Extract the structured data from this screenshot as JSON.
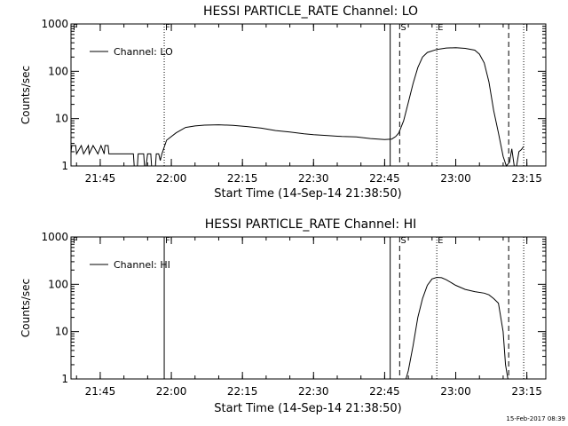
{
  "figure": {
    "footer_stamp": "15-Feb-2017 08:39",
    "x_tick_labels": [
      "21:45",
      "22:00",
      "22:15",
      "22:30",
      "22:45",
      "23:00",
      "23:15"
    ],
    "y_tick_labels": [
      "1",
      "10",
      "100",
      "1000"
    ],
    "marker_labels": {
      "F": "F",
      "S": "S",
      "E": "E"
    }
  },
  "chart_data": [
    {
      "type": "line",
      "title": "HESSI PARTICLE_RATE Channel: LO",
      "xlabel": "Start Time (14-Sep-14 21:38:50)",
      "ylabel": "Counts/sec",
      "yscale": "log",
      "ylim": [
        1,
        1000
      ],
      "xlim": [
        "21:38:50",
        "23:19:00"
      ],
      "legend": "upper-left",
      "series": [
        {
          "name": "Channel: LO",
          "color": "#000000",
          "x": [
            "21:38:50",
            "21:39:00",
            "21:39:50",
            "21:40:00",
            "21:41:00",
            "21:41:30",
            "21:42:30",
            "21:42:40",
            "21:43:30",
            "21:44:30",
            "21:45:10",
            "21:45:50",
            "21:46:00",
            "21:46:40",
            "21:46:50",
            "21:48:00",
            "21:48:40",
            "21:49:10",
            "21:49:40",
            "21:51:00",
            "21:52:00",
            "21:52:10",
            "21:52:50",
            "21:53:00",
            "21:53:20",
            "21:53:30",
            "21:54:10",
            "21:54:20",
            "21:54:40",
            "21:55:00",
            "21:55:40",
            "21:55:50",
            "21:56:40",
            "21:56:50",
            "21:57:20",
            "21:57:40",
            "21:58:00",
            "21:59:00",
            "22:01:00",
            "22:03:00",
            "22:05:00",
            "22:07:00",
            "22:10:00",
            "22:13:00",
            "22:16:00",
            "22:19:00",
            "22:22:00",
            "22:25:00",
            "22:28:00",
            "22:30:00",
            "22:33:00",
            "22:36:00",
            "22:39:00",
            "22:42:00",
            "22:45:00",
            "22:46:30",
            "22:47:20",
            "22:48:00",
            "22:49:00",
            "22:50:00",
            "22:51:00",
            "22:52:00",
            "22:53:00",
            "22:54:00",
            "22:56:00",
            "22:58:00",
            "23:00:00",
            "23:02:00",
            "23:04:00",
            "23:05:00",
            "23:06:00",
            "23:07:00",
            "23:08:00",
            "23:09:00",
            "23:10:00",
            "23:10:40",
            "23:11:20",
            "23:11:50",
            "23:12:20",
            "23:12:50",
            "23:13:20",
            "23:13:50",
            "23:14:20"
          ],
          "y": [
            2.0,
            2.7,
            2.7,
            1.8,
            2.7,
            1.8,
            2.7,
            1.8,
            2.7,
            1.8,
            2.7,
            1.8,
            2.7,
            2.7,
            1.8,
            1.8,
            1.8,
            1.8,
            1.8,
            1.8,
            1.8,
            1.0,
            1.0,
            1.8,
            1.8,
            1.8,
            1.8,
            1.0,
            1.0,
            1.8,
            1.8,
            1.0,
            1.0,
            1.8,
            1.8,
            1.3,
            1.8,
            3.5,
            5.0,
            6.5,
            7.0,
            7.3,
            7.4,
            7.2,
            6.8,
            6.3,
            5.6,
            5.2,
            4.8,
            4.6,
            4.4,
            4.2,
            4.1,
            3.8,
            3.6,
            3.7,
            4.2,
            5.0,
            9.0,
            22,
            55,
            120,
            200,
            250,
            290,
            310,
            315,
            305,
            280,
            230,
            150,
            60,
            15,
            5,
            1.6,
            0.7,
            1.2,
            2.3,
            0.7,
            1.0,
            2.0,
            2.2,
            2.6
          ]
        }
      ],
      "vertical_markers": [
        {
          "label": "F",
          "x": "21:58:30",
          "style": "dotted"
        },
        {
          "label": "",
          "x": "22:46:10",
          "style": "solid"
        },
        {
          "label": "S",
          "x": "22:48:10",
          "style": "dashed"
        },
        {
          "label": "E",
          "x": "22:56:00",
          "style": "dotted"
        },
        {
          "label": "",
          "x": "23:11:10",
          "style": "dashed"
        },
        {
          "label": "",
          "x": "23:14:20",
          "style": "dotted"
        }
      ]
    },
    {
      "type": "line",
      "title": "HESSI PARTICLE_RATE Channel: HI",
      "xlabel": "Start Time (14-Sep-14 21:38:50)",
      "ylabel": "Counts/sec",
      "yscale": "log",
      "ylim": [
        1,
        1000
      ],
      "xlim": [
        "21:38:50",
        "23:19:00"
      ],
      "legend": "upper-left",
      "series": [
        {
          "name": "Channel: HI",
          "color": "#000000",
          "x": [
            "22:49:30",
            "22:50:00",
            "22:51:00",
            "22:52:00",
            "22:53:00",
            "22:54:00",
            "22:55:00",
            "22:56:00",
            "22:57:00",
            "22:58:00",
            "23:00:00",
            "23:02:00",
            "23:04:00",
            "23:06:00",
            "23:07:00",
            "23:08:00",
            "23:09:00",
            "23:10:00",
            "23:10:30",
            "23:11:00"
          ],
          "y": [
            0.6,
            1.5,
            5,
            20,
            50,
            95,
            130,
            140,
            138,
            125,
            95,
            78,
            70,
            65,
            60,
            50,
            40,
            10,
            2,
            0.6
          ]
        }
      ],
      "vertical_markers": [
        {
          "label": "F",
          "x": "21:58:30",
          "style": "solid"
        },
        {
          "label": "",
          "x": "22:46:10",
          "style": "solid"
        },
        {
          "label": "S",
          "x": "22:48:10",
          "style": "dashed"
        },
        {
          "label": "E",
          "x": "22:56:00",
          "style": "dotted"
        },
        {
          "label": "",
          "x": "23:11:10",
          "style": "dashed"
        },
        {
          "label": "",
          "x": "23:14:20",
          "style": "dotted"
        }
      ]
    }
  ]
}
